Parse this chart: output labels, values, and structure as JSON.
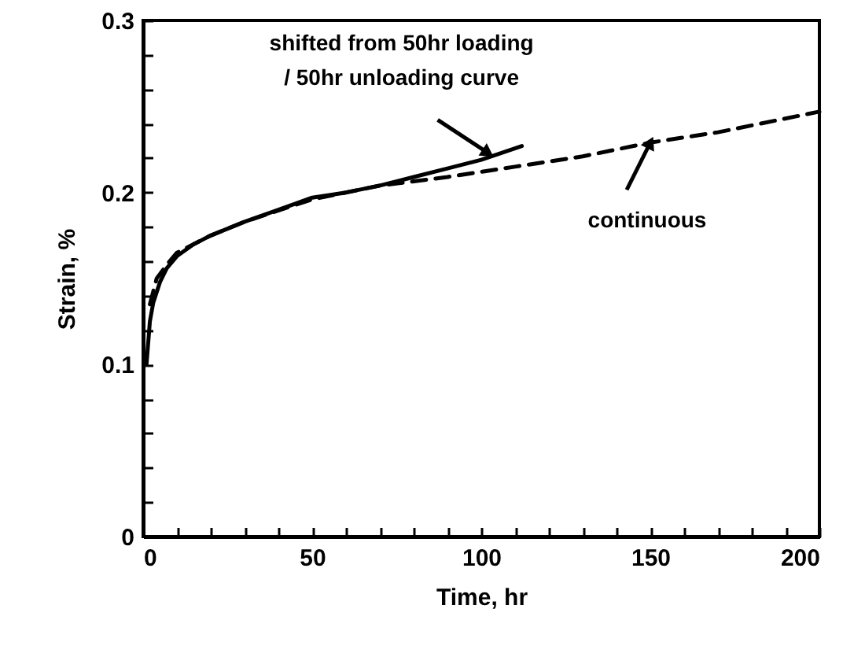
{
  "chart_data": {
    "type": "line",
    "xlabel": "Time, hr",
    "ylabel": "Strain, %",
    "xlim": [
      0,
      200
    ],
    "ylim": [
      0,
      0.3
    ],
    "xticks": [
      0,
      {
        "value": 10,
        "label": null
      },
      {
        "value": 20,
        "label": null
      },
      {
        "value": 30,
        "label": null
      },
      {
        "value": 40,
        "label": null
      },
      50,
      {
        "value": 60,
        "label": null
      },
      {
        "value": 70,
        "label": null
      },
      {
        "value": 80,
        "label": null
      },
      {
        "value": 90,
        "label": null
      },
      100,
      {
        "value": 110,
        "label": null
      },
      {
        "value": 120,
        "label": null
      },
      {
        "value": 130,
        "label": null
      },
      {
        "value": 140,
        "label": null
      },
      150,
      {
        "value": 160,
        "label": null
      },
      {
        "value": 170,
        "label": null
      },
      {
        "value": 180,
        "label": null
      },
      {
        "value": 190,
        "label": null
      },
      200
    ],
    "yticks": [
      0,
      {
        "value": 0.02,
        "label": null
      },
      {
        "value": 0.04,
        "label": null
      },
      {
        "value": 0.06,
        "label": null
      },
      {
        "value": 0.08,
        "label": null
      },
      0.1,
      {
        "value": 0.12,
        "label": null
      },
      {
        "value": 0.14,
        "label": null
      },
      {
        "value": 0.16,
        "label": null
      },
      {
        "value": 0.18,
        "label": null
      },
      0.2,
      {
        "value": 0.22,
        "label": null
      },
      {
        "value": 0.24,
        "label": null
      },
      {
        "value": 0.26,
        "label": null
      },
      {
        "value": 0.28,
        "label": null
      },
      0.3
    ],
    "grid": false,
    "series": [
      {
        "color": "#000000",
        "line_style": "solid",
        "x": [
          1,
          2,
          3,
          5,
          7,
          10,
          15,
          20,
          30,
          40,
          50,
          60,
          70,
          80,
          90,
          100,
          112
        ],
        "values": [
          0.1,
          0.125,
          0.136,
          0.148,
          0.156,
          0.163,
          0.17,
          0.175,
          0.183,
          0.19,
          0.197,
          0.2,
          0.204,
          0.209,
          0.214,
          0.219,
          0.227
        ]
      },
      {
        "color": "#000000",
        "line_style": "dashed",
        "x": [
          2,
          4,
          7,
          10,
          20,
          30,
          50,
          70,
          90,
          100,
          110,
          130,
          150,
          170,
          200
        ],
        "values": [
          0.135,
          0.15,
          0.158,
          0.165,
          0.175,
          0.183,
          0.196,
          0.204,
          0.209,
          0.212,
          0.215,
          0.221,
          0.229,
          0.235,
          0.247
        ]
      }
    ],
    "annotations": [
      {
        "text": "shifted from 50hr loading\n/ 50hr unloading curve",
        "x": 102,
        "y": 0.223
      },
      {
        "text": "continuous",
        "x": 150,
        "y": 0.229
      }
    ]
  }
}
